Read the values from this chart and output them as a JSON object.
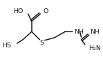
{
  "bg_color": "#ffffff",
  "line_color": "#1a1a1a",
  "text_color": "#1a1a1a",
  "font_size": 6.8,
  "line_width": 1.1,
  "figsize": [
    1.49,
    0.86
  ],
  "dpi": 100,
  "xlim": [
    -0.18,
    1.1
  ],
  "ylim": [
    -0.38,
    0.55
  ]
}
